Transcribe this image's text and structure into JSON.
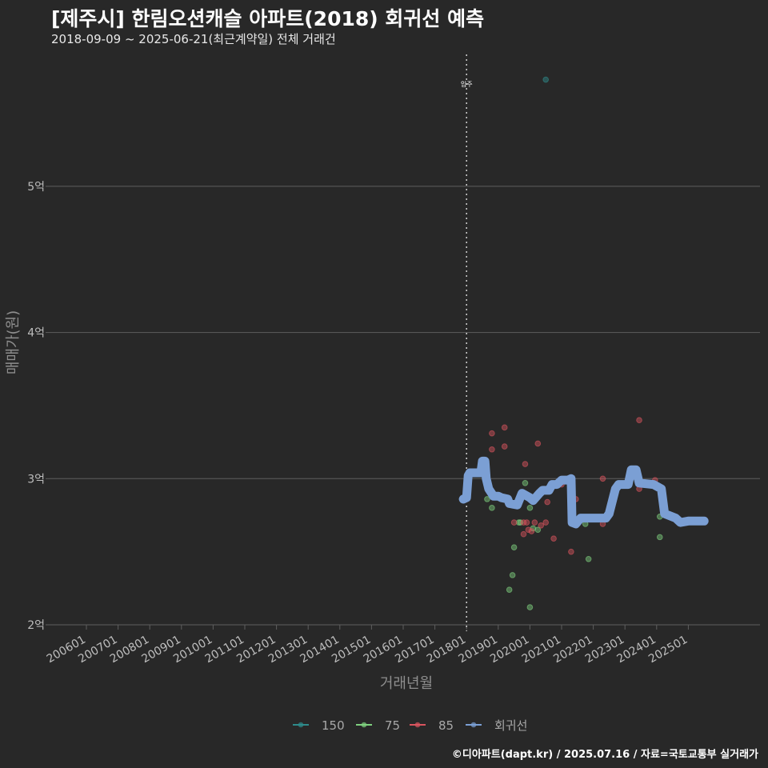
{
  "header": {
    "title": "[제주시] 한림오션캐슬 아파트(2018) 회귀선 예측",
    "subtitle": "2018-09-09 ~ 2025-06-21(최근계약일) 전체 거래건",
    "caption": "©디아파트(dapt.kr) / 2025.07.16 / 자료=국토교통부 실거래가"
  },
  "colors": {
    "background": "#282828",
    "grid": "#5e5e5e",
    "s150": "#2e8b8b",
    "s75": "#7fd17f",
    "s85": "#d9545e",
    "regression": "#7b9fd4"
  },
  "chart_data": {
    "type": "scatter",
    "title": "[제주시] 한림오션캐슬 아파트(2018) 회귀선 예측",
    "xlabel": "거래년월",
    "ylabel": "매매가(원)",
    "xlim": [
      2005.9,
      2027.1
    ],
    "ylim": [
      1.95,
      5.85
    ],
    "x_ticks": [
      {
        "v": 2006,
        "label": "200601"
      },
      {
        "v": 2007,
        "label": "200701"
      },
      {
        "v": 2008,
        "label": "200801"
      },
      {
        "v": 2009,
        "label": "200901"
      },
      {
        "v": 2010,
        "label": "201001"
      },
      {
        "v": 2011,
        "label": "201101"
      },
      {
        "v": 2012,
        "label": "201201"
      },
      {
        "v": 2013,
        "label": "201301"
      },
      {
        "v": 2014,
        "label": "201401"
      },
      {
        "v": 2015,
        "label": "201501"
      },
      {
        "v": 2016,
        "label": "201601"
      },
      {
        "v": 2017,
        "label": "201701"
      },
      {
        "v": 2018,
        "label": "201801"
      },
      {
        "v": 2019,
        "label": "201901"
      },
      {
        "v": 2020,
        "label": "202001"
      },
      {
        "v": 2021,
        "label": "202101"
      },
      {
        "v": 2022,
        "label": "202201"
      },
      {
        "v": 2023,
        "label": "202301"
      },
      {
        "v": 2024,
        "label": "202401"
      },
      {
        "v": 2025,
        "label": "202501"
      }
    ],
    "y_ticks": [
      {
        "v": 2,
        "label": "2억"
      },
      {
        "v": 3,
        "label": "3억"
      },
      {
        "v": 4,
        "label": "4억"
      },
      {
        "v": 5,
        "label": "5억"
      }
    ],
    "annotation": {
      "x": 2018.0,
      "y": 5.7,
      "text": "입주"
    },
    "series": [
      {
        "name": "150",
        "color": "#2e8b8b",
        "points": [
          [
            2020.5,
            5.73
          ]
        ]
      },
      {
        "name": "75",
        "color": "#7fd17f",
        "points": [
          [
            2018.65,
            2.86
          ],
          [
            2018.8,
            2.8
          ],
          [
            2019.35,
            2.24
          ],
          [
            2019.45,
            2.34
          ],
          [
            2019.5,
            2.53
          ],
          [
            2019.65,
            2.7
          ],
          [
            2019.7,
            2.7
          ],
          [
            2019.85,
            2.97
          ],
          [
            2020.0,
            2.12
          ],
          [
            2020.0,
            2.8
          ],
          [
            2020.1,
            2.66
          ],
          [
            2020.25,
            2.65
          ],
          [
            2021.75,
            2.69
          ],
          [
            2021.85,
            2.45
          ],
          [
            2024.1,
            2.74
          ],
          [
            2024.1,
            2.6
          ]
        ]
      },
      {
        "name": "85",
        "color": "#d9545e",
        "points": [
          [
            2018.8,
            3.31
          ],
          [
            2018.8,
            3.2
          ],
          [
            2019.2,
            3.35
          ],
          [
            2019.2,
            3.22
          ],
          [
            2019.5,
            2.7
          ],
          [
            2019.8,
            2.7
          ],
          [
            2019.8,
            2.62
          ],
          [
            2019.85,
            3.1
          ],
          [
            2019.9,
            2.7
          ],
          [
            2019.95,
            2.65
          ],
          [
            2020.05,
            2.64
          ],
          [
            2020.15,
            2.7
          ],
          [
            2020.25,
            3.24
          ],
          [
            2020.35,
            2.68
          ],
          [
            2020.5,
            2.7
          ],
          [
            2020.55,
            2.84
          ],
          [
            2020.75,
            2.59
          ],
          [
            2021.0,
            2.96
          ],
          [
            2021.3,
            2.5
          ],
          [
            2021.45,
            2.86
          ],
          [
            2022.3,
            2.69
          ],
          [
            2022.3,
            3.0
          ],
          [
            2023.45,
            2.93
          ],
          [
            2023.45,
            3.4
          ],
          [
            2023.95,
            2.99
          ]
        ]
      },
      {
        "name": "회귀선",
        "color": "#7b9fd4",
        "points": [
          [
            2017.9,
            2.86
          ],
          [
            2018.0,
            2.87
          ],
          [
            2018.05,
            3.02
          ],
          [
            2018.1,
            3.04
          ],
          [
            2018.45,
            3.04
          ],
          [
            2018.5,
            3.12
          ],
          [
            2018.58,
            3.12
          ],
          [
            2018.62,
            3.0
          ],
          [
            2018.7,
            2.93
          ],
          [
            2018.85,
            2.88
          ],
          [
            2019.0,
            2.88
          ],
          [
            2019.1,
            2.87
          ],
          [
            2019.3,
            2.86
          ],
          [
            2019.35,
            2.83
          ],
          [
            2019.6,
            2.82
          ],
          [
            2019.75,
            2.9
          ],
          [
            2020.0,
            2.87
          ],
          [
            2020.1,
            2.85
          ],
          [
            2020.3,
            2.9
          ],
          [
            2020.4,
            2.92
          ],
          [
            2020.6,
            2.92
          ],
          [
            2020.7,
            2.96
          ],
          [
            2020.85,
            2.96
          ],
          [
            2021.0,
            2.99
          ],
          [
            2021.2,
            2.99
          ],
          [
            2021.3,
            3.0
          ],
          [
            2021.33,
            2.7
          ],
          [
            2021.45,
            2.69
          ],
          [
            2021.6,
            2.73
          ],
          [
            2022.0,
            2.73
          ],
          [
            2022.4,
            2.73
          ],
          [
            2022.5,
            2.76
          ],
          [
            2022.7,
            2.93
          ],
          [
            2022.8,
            2.96
          ],
          [
            2023.1,
            2.96
          ],
          [
            2023.2,
            3.06
          ],
          [
            2023.35,
            3.06
          ],
          [
            2023.45,
            2.97
          ],
          [
            2023.9,
            2.96
          ],
          [
            2024.15,
            2.93
          ],
          [
            2024.25,
            2.76
          ],
          [
            2024.6,
            2.73
          ],
          [
            2024.75,
            2.7
          ],
          [
            2025.0,
            2.71
          ],
          [
            2025.5,
            2.71
          ]
        ]
      }
    ],
    "legend": [
      "150",
      "75",
      "85",
      "회귀선"
    ]
  }
}
